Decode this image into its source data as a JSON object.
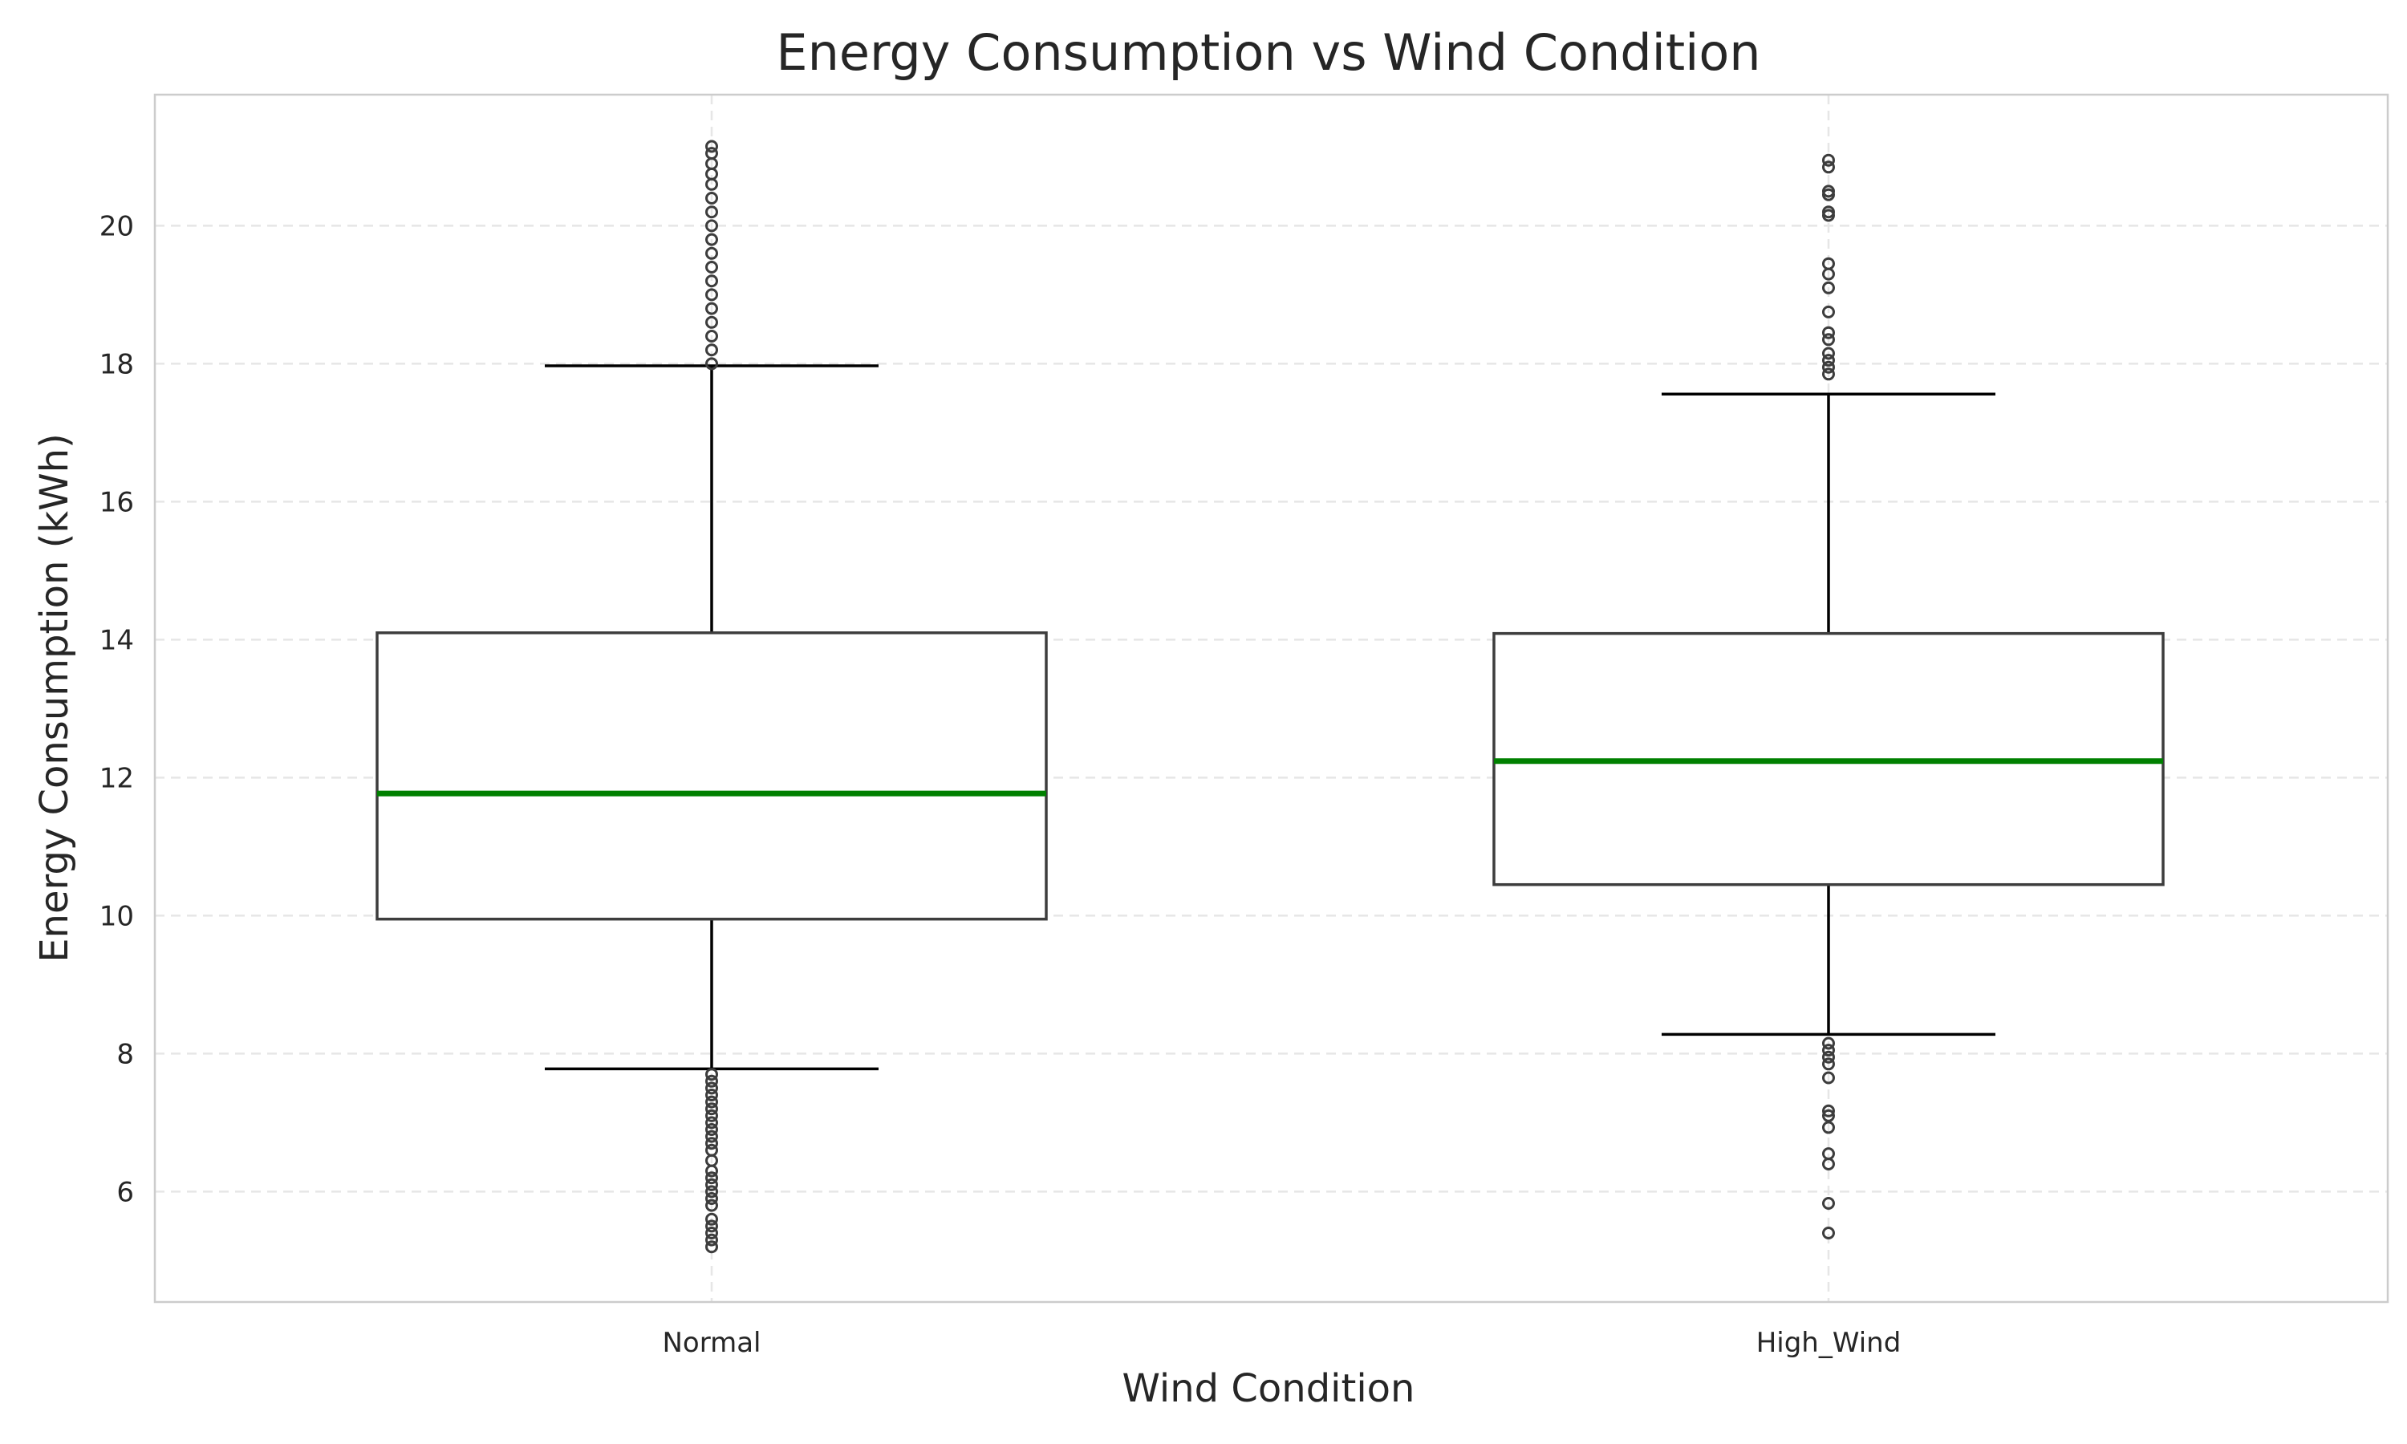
{
  "chart_data": {
    "type": "box",
    "title": "Energy Consumption vs Wind Condition",
    "xlabel": "Wind Condition",
    "ylabel": "Energy Consumption (kWh)",
    "ylim": [
      4.4,
      21.9
    ],
    "yticks": [
      6,
      8,
      10,
      12,
      14,
      16,
      18,
      20
    ],
    "grid": true,
    "median_color": "#008000",
    "box_edge_color": "#3d3d3d",
    "categories": [
      "Normal",
      "High_Wind"
    ],
    "boxes": [
      {
        "category": "Normal",
        "whisker_low": 7.78,
        "q1": 9.95,
        "median": 11.77,
        "q3": 14.1,
        "whisker_high": 17.97,
        "outliers": [
          5.2,
          5.3,
          5.4,
          5.5,
          5.6,
          5.8,
          5.9,
          6.0,
          6.1,
          6.2,
          6.3,
          6.45,
          6.6,
          6.7,
          6.8,
          6.9,
          7.0,
          7.1,
          7.2,
          7.3,
          7.4,
          7.5,
          7.6,
          7.7,
          18.0,
          18.2,
          18.4,
          18.6,
          18.8,
          19.0,
          19.2,
          19.4,
          19.6,
          19.8,
          20.0,
          20.2,
          20.4,
          20.6,
          20.75,
          20.9,
          21.05,
          21.15
        ]
      },
      {
        "category": "High_Wind",
        "whisker_low": 8.28,
        "q1": 10.45,
        "median": 12.24,
        "q3": 14.09,
        "whisker_high": 17.56,
        "outliers": [
          5.4,
          5.83,
          6.4,
          6.55,
          6.93,
          7.1,
          7.17,
          7.65,
          7.85,
          7.95,
          8.05,
          8.15,
          17.85,
          17.95,
          18.05,
          18.15,
          18.35,
          18.45,
          18.75,
          19.1,
          19.3,
          19.45,
          20.15,
          20.2,
          20.45,
          20.5,
          20.85,
          20.95
        ]
      }
    ]
  }
}
